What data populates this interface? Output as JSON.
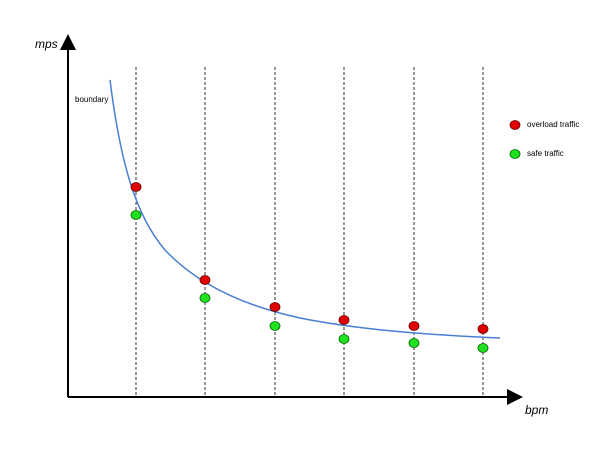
{
  "axes": {
    "y_label": "mps",
    "x_label": "bpm"
  },
  "curve_label": "boundary",
  "legend": [
    {
      "label": "overload traffic"
    },
    {
      "label": "safe traffic"
    }
  ]
}
